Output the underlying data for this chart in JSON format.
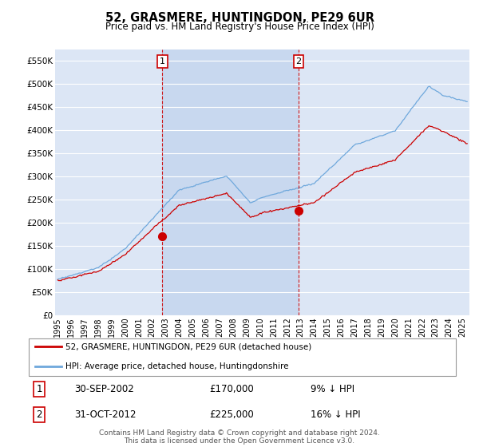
{
  "title": "52, GRASMERE, HUNTINGDON, PE29 6UR",
  "subtitle": "Price paid vs. HM Land Registry's House Price Index (HPI)",
  "title_fontsize": 11,
  "subtitle_fontsize": 9,
  "background_color": "#ffffff",
  "plot_bg_color": "#dce6f5",
  "plot_bg_highlight": "#c8d8ef",
  "grid_color": "#ffffff",
  "ylim": [
    0,
    575000
  ],
  "yticks": [
    0,
    50000,
    100000,
    150000,
    200000,
    250000,
    300000,
    350000,
    400000,
    450000,
    500000,
    550000
  ],
  "ytick_labels": [
    "£0",
    "£50K",
    "£100K",
    "£150K",
    "£200K",
    "£250K",
    "£300K",
    "£350K",
    "£400K",
    "£450K",
    "£500K",
    "£550K"
  ],
  "hpi_color": "#6fa8dc",
  "price_color": "#cc0000",
  "vline_color": "#cc0000",
  "marker1_x": 2002.75,
  "marker1_y": 170000,
  "marker1_label": "1",
  "marker1_date": "30-SEP-2002",
  "marker1_price": "£170,000",
  "marker1_hpi": "9% ↓ HPI",
  "marker2_x": 2012.833,
  "marker2_y": 225000,
  "marker2_label": "2",
  "marker2_date": "31-OCT-2012",
  "marker2_price": "£225,000",
  "marker2_hpi": "16% ↓ HPI",
  "legend_house_label": "52, GRASMERE, HUNTINGDON, PE29 6UR (detached house)",
  "legend_hpi_label": "HPI: Average price, detached house, Huntingdonshire",
  "footnote": "Contains HM Land Registry data © Crown copyright and database right 2024.\nThis data is licensed under the Open Government Licence v3.0.",
  "xmin": 1995,
  "xmax": 2025.5
}
